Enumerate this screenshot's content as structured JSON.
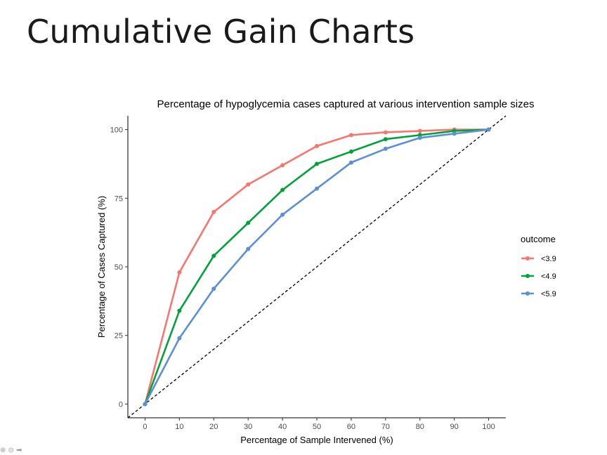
{
  "slide": {
    "title": "Cumulative Gain Charts"
  },
  "chart_data": {
    "type": "line",
    "title": "Percentage of hypoglycemia cases captured at various intervention sample sizes",
    "xlabel": "Percentage of Sample Intervened (%)",
    "ylabel": "Percentage of Cases Captured (%)",
    "xlim": [
      -5,
      105
    ],
    "ylim": [
      -5,
      105
    ],
    "x_ticks": [
      0,
      10,
      20,
      30,
      40,
      50,
      60,
      70,
      80,
      90,
      100
    ],
    "y_ticks": [
      0,
      25,
      50,
      75,
      100
    ],
    "x": [
      0,
      10,
      20,
      30,
      40,
      50,
      60,
      70,
      80,
      90,
      100
    ],
    "grid": false,
    "legend": {
      "title": "outcome",
      "position": "right"
    },
    "reference_line": {
      "style": "dashed",
      "color": "#000000",
      "from": [
        -5,
        -5
      ],
      "to": [
        105,
        105
      ]
    },
    "series": [
      {
        "name": "<3.9",
        "color": "#F8766D",
        "values": [
          0,
          48,
          70,
          80,
          87,
          94,
          98,
          99,
          99.5,
          100,
          100
        ]
      },
      {
        "name": "<4.9",
        "color": "#00A33A",
        "values": [
          0,
          34,
          54,
          66,
          78,
          87.5,
          92,
          96.5,
          98,
          99.5,
          100
        ]
      },
      {
        "name": "<5.9",
        "color": "#5B8FD6",
        "values": [
          0,
          24,
          42,
          56.5,
          69,
          78.5,
          88,
          93,
          97,
          98.5,
          100
        ]
      }
    ]
  },
  "player": {
    "controls": "⊕ ⊝ ➡"
  }
}
